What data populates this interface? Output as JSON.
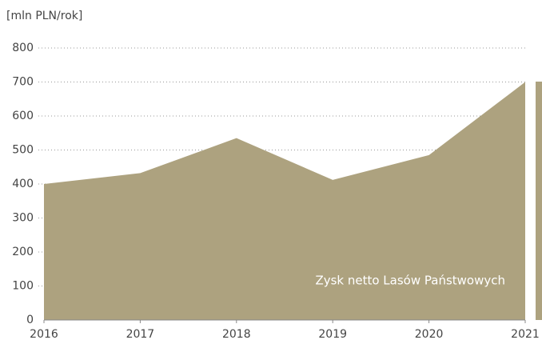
{
  "chart_data": {
    "type": "area",
    "y_label": "[mln PLN/rok]",
    "annotation": "Zysk netto Lasów Państwowych",
    "x": [
      2016,
      2017,
      2018,
      2019,
      2020,
      2021
    ],
    "series": [
      {
        "name": "Zysk netto Lasów Państwowych",
        "color": "#ada27f",
        "values": [
          400,
          432,
          535,
          412,
          485,
          700
        ]
      }
    ],
    "xlim": [
      2016,
      2021
    ],
    "xticks": [
      2016,
      2017,
      2018,
      2019,
      2020,
      2021
    ],
    "ylim": [
      0,
      800
    ],
    "yticks": [
      0,
      100,
      200,
      300,
      400,
      500,
      600,
      700,
      800
    ],
    "grid": true
  }
}
